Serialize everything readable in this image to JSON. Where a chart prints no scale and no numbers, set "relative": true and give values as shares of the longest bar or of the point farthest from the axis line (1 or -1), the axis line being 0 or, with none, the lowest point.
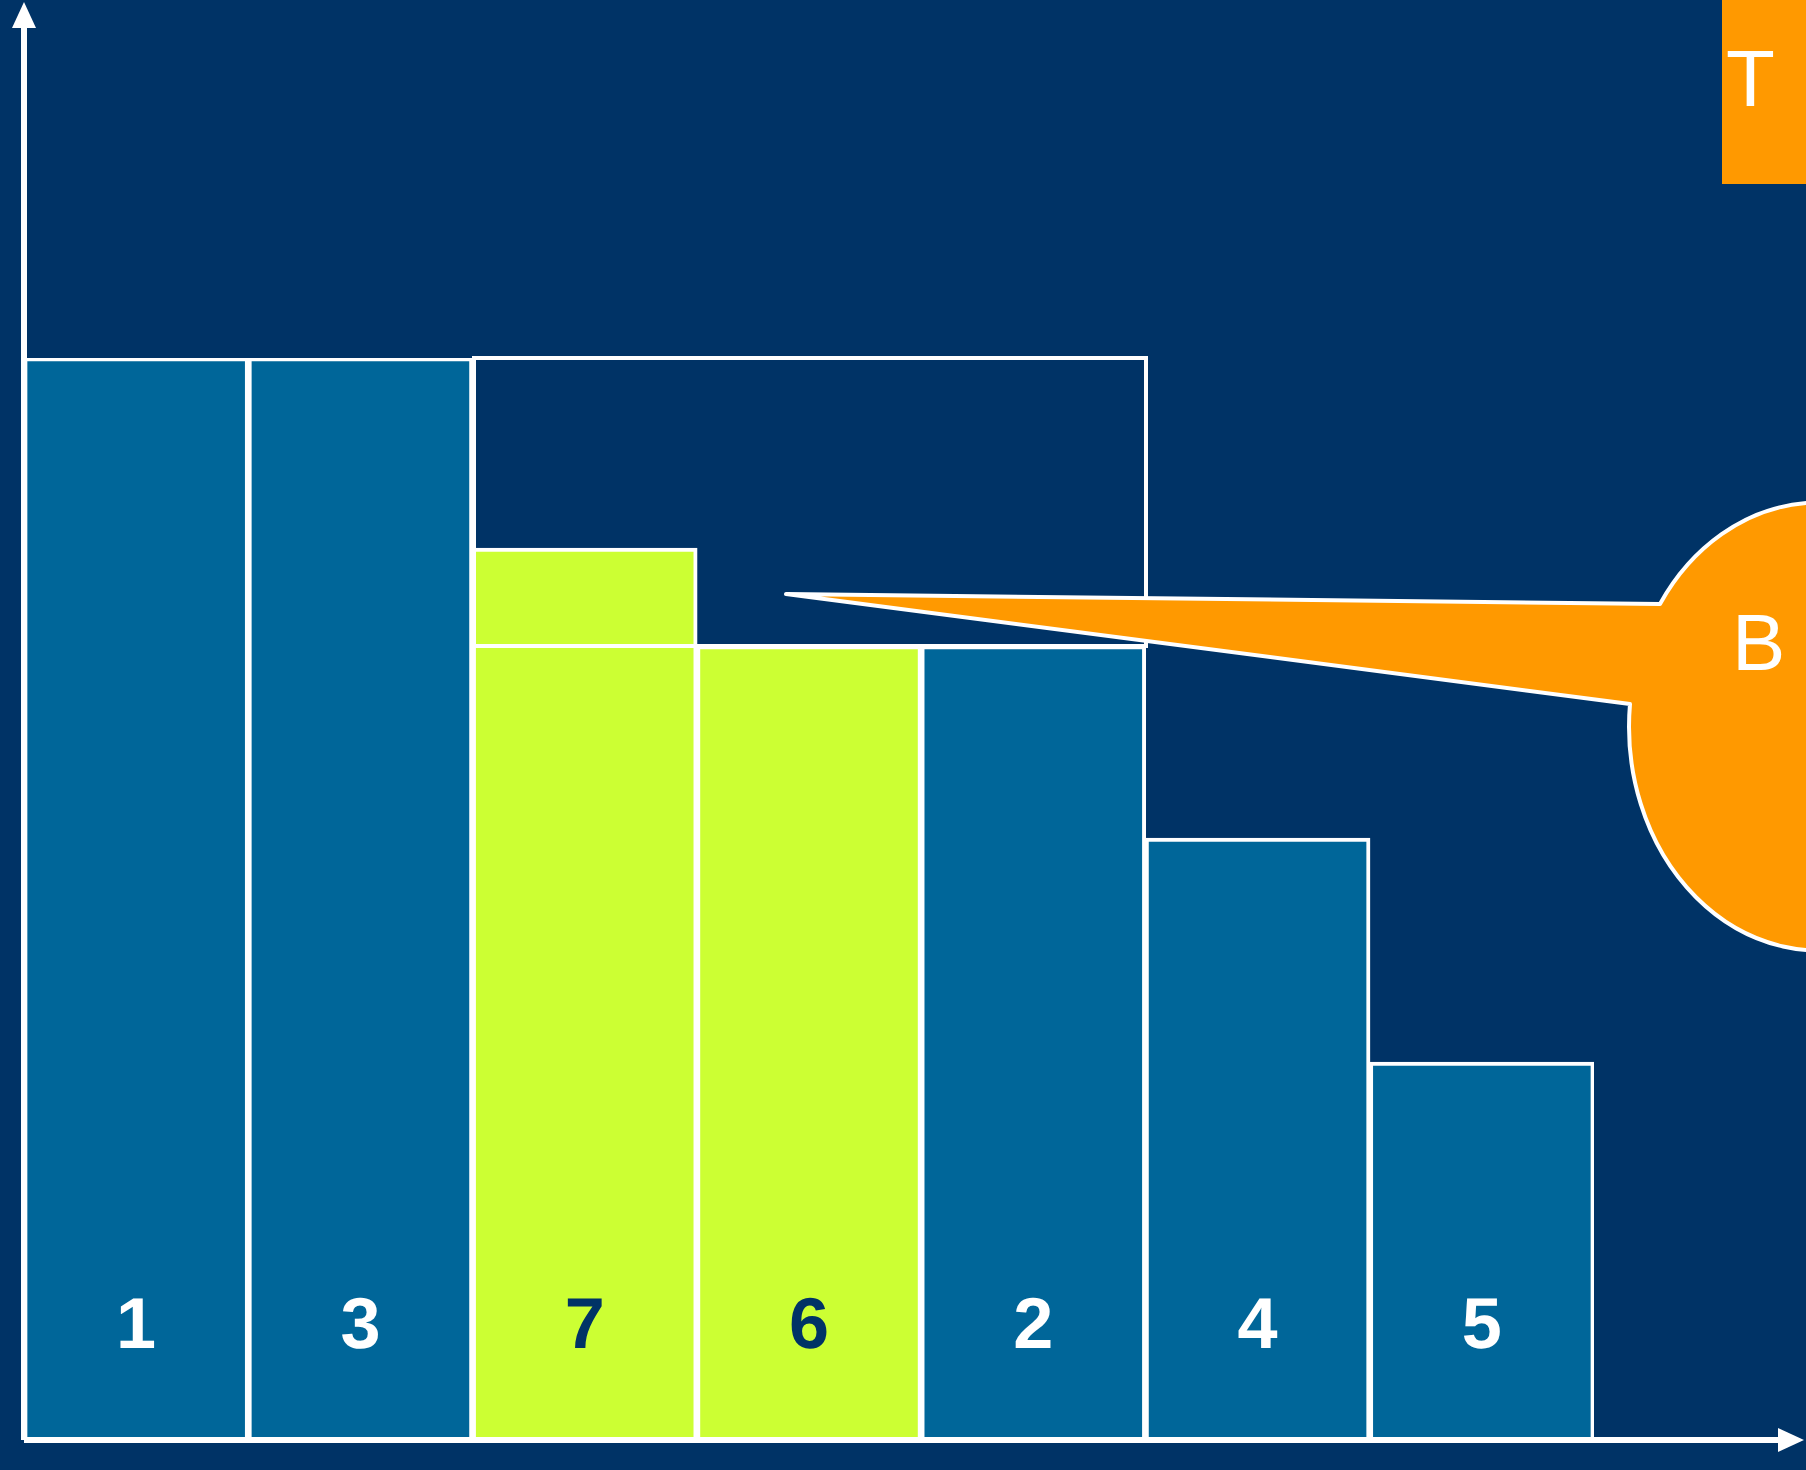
{
  "chart_data": {
    "type": "bar",
    "relative": true,
    "categories": [
      "1",
      "3",
      "7",
      "6",
      "2",
      "4",
      "5"
    ],
    "values": [
      1,
      1,
      0.824,
      0.734,
      0.734,
      0.556,
      0.349
    ],
    "colors": [
      "#006699",
      "#006699",
      "#ccff33",
      "#ccff33",
      "#006699",
      "#006699",
      "#006699"
    ],
    "legend": false,
    "annotations": [
      "T",
      "B"
    ]
  }
}
